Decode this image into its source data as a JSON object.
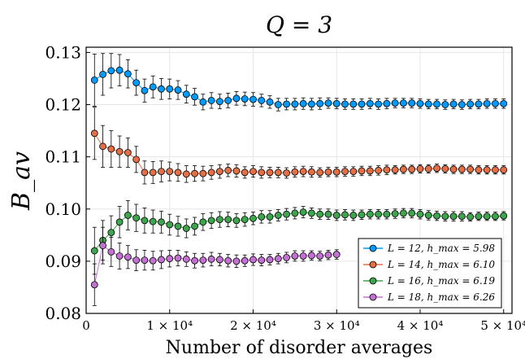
{
  "chart_data": {
    "type": "scatter",
    "title": "Q = 3",
    "xlabel": "Number of disorder averages",
    "ylabel": "B_av",
    "xlim": [
      0,
      51000
    ],
    "ylim": [
      0.08,
      0.131
    ],
    "xticks": [
      0,
      10000,
      20000,
      30000,
      40000,
      50000
    ],
    "xtick_labels": [
      "0",
      "1 × 10⁴",
      "2 × 10⁴",
      "3 × 10⁴",
      "4 × 10⁴",
      "5 × 10⁴"
    ],
    "yticks": [
      0.08,
      0.09,
      0.1,
      0.11,
      0.12,
      0.13
    ],
    "ytick_labels": [
      "0.08",
      "0.09",
      "0.10",
      "0.11",
      "0.12",
      "0.13"
    ],
    "grid": true,
    "legend_position": "bottom-right",
    "series": [
      {
        "name": "L = 12, h_max = 5.98",
        "color": "#009AFA",
        "points": [
          [
            1000,
            0.1247,
            0.005
          ],
          [
            2000,
            0.1258,
            0.004
          ],
          [
            3000,
            0.1265,
            0.0033
          ],
          [
            4000,
            0.1266,
            0.003
          ],
          [
            5000,
            0.1259,
            0.0027
          ],
          [
            6000,
            0.1242,
            0.0024
          ],
          [
            7000,
            0.1227,
            0.0022
          ],
          [
            8000,
            0.1234,
            0.0021
          ],
          [
            9000,
            0.123,
            0.002
          ],
          [
            10000,
            0.123,
            0.0019
          ],
          [
            11000,
            0.1228,
            0.0018
          ],
          [
            12000,
            0.122,
            0.0017
          ],
          [
            13000,
            0.1215,
            0.0016
          ],
          [
            14000,
            0.1205,
            0.0015
          ],
          [
            15000,
            0.1208,
            0.0015
          ],
          [
            16000,
            0.1206,
            0.0014
          ],
          [
            17000,
            0.1208,
            0.0014
          ],
          [
            18000,
            0.1212,
            0.0013
          ],
          [
            19000,
            0.1211,
            0.0013
          ],
          [
            20000,
            0.121,
            0.0013
          ],
          [
            21000,
            0.1208,
            0.0012
          ],
          [
            22000,
            0.1205,
            0.0012
          ],
          [
            23000,
            0.12,
            0.0012
          ],
          [
            24000,
            0.1201,
            0.0011
          ],
          [
            25000,
            0.1201,
            0.0011
          ],
          [
            26000,
            0.1202,
            0.0011
          ],
          [
            27000,
            0.1201,
            0.0011
          ],
          [
            28000,
            0.1202,
            0.0011
          ],
          [
            29000,
            0.1203,
            0.001
          ],
          [
            30000,
            0.1202,
            0.001
          ],
          [
            31000,
            0.1201,
            0.001
          ],
          [
            32000,
            0.1201,
            0.001
          ],
          [
            33000,
            0.1201,
            0.001
          ],
          [
            34000,
            0.1202,
            0.001
          ],
          [
            35000,
            0.1201,
            0.001
          ],
          [
            36000,
            0.1202,
            0.001
          ],
          [
            37000,
            0.1203,
            0.0009
          ],
          [
            38000,
            0.1203,
            0.0009
          ],
          [
            39000,
            0.1203,
            0.0009
          ],
          [
            40000,
            0.1202,
            0.0009
          ],
          [
            41000,
            0.1201,
            0.0009
          ],
          [
            42000,
            0.1201,
            0.0009
          ],
          [
            43000,
            0.12,
            0.0009
          ],
          [
            44000,
            0.1201,
            0.0009
          ],
          [
            45000,
            0.12,
            0.0009
          ],
          [
            46000,
            0.1201,
            0.0009
          ],
          [
            47000,
            0.1201,
            0.0009
          ],
          [
            48000,
            0.1202,
            0.0009
          ],
          [
            49000,
            0.1202,
            0.0009
          ],
          [
            50000,
            0.1202,
            0.0009
          ]
        ]
      },
      {
        "name": "L = 14, h_max = 6.10",
        "color": "#E26F46",
        "points": [
          [
            1000,
            0.1145,
            0.005
          ],
          [
            2000,
            0.112,
            0.004
          ],
          [
            3000,
            0.1115,
            0.0035
          ],
          [
            4000,
            0.111,
            0.003
          ],
          [
            5000,
            0.1108,
            0.0028
          ],
          [
            6000,
            0.1095,
            0.0025
          ],
          [
            7000,
            0.107,
            0.0022
          ],
          [
            8000,
            0.107,
            0.0021
          ],
          [
            9000,
            0.1072,
            0.002
          ],
          [
            10000,
            0.1072,
            0.0018
          ],
          [
            11000,
            0.107,
            0.0017
          ],
          [
            12000,
            0.1067,
            0.0016
          ],
          [
            13000,
            0.1068,
            0.0015
          ],
          [
            14000,
            0.1068,
            0.0014
          ],
          [
            15000,
            0.107,
            0.0013
          ],
          [
            16000,
            0.1072,
            0.0013
          ],
          [
            17000,
            0.1074,
            0.0012
          ],
          [
            18000,
            0.1073,
            0.0012
          ],
          [
            19000,
            0.107,
            0.0011
          ],
          [
            20000,
            0.1072,
            0.0011
          ],
          [
            21000,
            0.107,
            0.0011
          ],
          [
            22000,
            0.107,
            0.001
          ],
          [
            23000,
            0.107,
            0.001
          ],
          [
            24000,
            0.1069,
            0.001
          ],
          [
            25000,
            0.1071,
            0.001
          ],
          [
            26000,
            0.1072,
            0.001
          ],
          [
            27000,
            0.1071,
            0.001
          ],
          [
            28000,
            0.107,
            0.0009
          ],
          [
            29000,
            0.1071,
            0.0009
          ],
          [
            30000,
            0.1071,
            0.0009
          ],
          [
            31000,
            0.1072,
            0.0009
          ],
          [
            32000,
            0.1072,
            0.0009
          ],
          [
            33000,
            0.1073,
            0.0009
          ],
          [
            34000,
            0.1073,
            0.0009
          ],
          [
            35000,
            0.1074,
            0.0009
          ],
          [
            36000,
            0.1075,
            0.0009
          ],
          [
            37000,
            0.1075,
            0.0008
          ],
          [
            38000,
            0.1076,
            0.0008
          ],
          [
            39000,
            0.1076,
            0.0008
          ],
          [
            40000,
            0.1077,
            0.0008
          ],
          [
            41000,
            0.1077,
            0.0008
          ],
          [
            42000,
            0.1078,
            0.0008
          ],
          [
            43000,
            0.1077,
            0.0008
          ],
          [
            44000,
            0.1076,
            0.0008
          ],
          [
            45000,
            0.1076,
            0.0008
          ],
          [
            46000,
            0.1076,
            0.0008
          ],
          [
            47000,
            0.1075,
            0.0008
          ],
          [
            48000,
            0.1075,
            0.0008
          ],
          [
            49000,
            0.1075,
            0.0008
          ],
          [
            50000,
            0.1075,
            0.0008
          ]
        ]
      },
      {
        "name": "L = 16, h_max = 6.19",
        "color": "#3EA44E",
        "points": [
          [
            1000,
            0.092,
            0.0045
          ],
          [
            2000,
            0.094,
            0.0038
          ],
          [
            3000,
            0.0955,
            0.0032
          ],
          [
            4000,
            0.0975,
            0.003
          ],
          [
            5000,
            0.0988,
            0.0028
          ],
          [
            6000,
            0.0983,
            0.0026
          ],
          [
            7000,
            0.0978,
            0.0024
          ],
          [
            8000,
            0.0976,
            0.0022
          ],
          [
            9000,
            0.0975,
            0.0021
          ],
          [
            10000,
            0.097,
            0.002
          ],
          [
            11000,
            0.0967,
            0.0019
          ],
          [
            12000,
            0.0963,
            0.0018
          ],
          [
            13000,
            0.0967,
            0.0017
          ],
          [
            14000,
            0.0975,
            0.0016
          ],
          [
            15000,
            0.0978,
            0.0015
          ],
          [
            16000,
            0.098,
            0.0015
          ],
          [
            17000,
            0.098,
            0.0014
          ],
          [
            18000,
            0.0978,
            0.0013
          ],
          [
            19000,
            0.098,
            0.0013
          ],
          [
            20000,
            0.0982,
            0.0012
          ],
          [
            21000,
            0.0985,
            0.0012
          ],
          [
            22000,
            0.0985,
            0.0012
          ],
          [
            23000,
            0.0988,
            0.0011
          ],
          [
            24000,
            0.099,
            0.0011
          ],
          [
            25000,
            0.0992,
            0.0011
          ],
          [
            26000,
            0.0994,
            0.0011
          ],
          [
            27000,
            0.0992,
            0.001
          ],
          [
            28000,
            0.099,
            0.001
          ],
          [
            29000,
            0.099,
            0.001
          ],
          [
            30000,
            0.0988,
            0.001
          ],
          [
            31000,
            0.0989,
            0.001
          ],
          [
            32000,
            0.0988,
            0.001
          ],
          [
            33000,
            0.0989,
            0.0009
          ],
          [
            34000,
            0.099,
            0.0009
          ],
          [
            35000,
            0.099,
            0.0009
          ],
          [
            36000,
            0.099,
            0.0009
          ],
          [
            37000,
            0.0991,
            0.0009
          ],
          [
            38000,
            0.0992,
            0.0009
          ],
          [
            39000,
            0.0992,
            0.0009
          ],
          [
            40000,
            0.099,
            0.0009
          ],
          [
            41000,
            0.0988,
            0.0009
          ],
          [
            42000,
            0.0987,
            0.0009
          ],
          [
            43000,
            0.0986,
            0.0009
          ],
          [
            44000,
            0.0986,
            0.0009
          ],
          [
            45000,
            0.0986,
            0.0009
          ],
          [
            46000,
            0.0985,
            0.0008
          ],
          [
            47000,
            0.0986,
            0.0008
          ],
          [
            48000,
            0.0986,
            0.0008
          ],
          [
            49000,
            0.0986,
            0.0008
          ],
          [
            50000,
            0.0987,
            0.0008
          ]
        ]
      },
      {
        "name": "L = 18, h_max = 6.26",
        "color": "#C271D2",
        "points": [
          [
            1000,
            0.0855,
            0.004
          ],
          [
            2000,
            0.093,
            0.0035
          ],
          [
            3000,
            0.0918,
            0.0028
          ],
          [
            4000,
            0.091,
            0.0025
          ],
          [
            5000,
            0.0908,
            0.0022
          ],
          [
            6000,
            0.0902,
            0.002
          ],
          [
            7000,
            0.0902,
            0.0019
          ],
          [
            8000,
            0.0901,
            0.0018
          ],
          [
            9000,
            0.0903,
            0.0017
          ],
          [
            10000,
            0.0905,
            0.0016
          ],
          [
            11000,
            0.0906,
            0.0015
          ],
          [
            12000,
            0.0904,
            0.0014
          ],
          [
            13000,
            0.0901,
            0.0014
          ],
          [
            14000,
            0.0902,
            0.0013
          ],
          [
            15000,
            0.0904,
            0.0013
          ],
          [
            16000,
            0.0903,
            0.0012
          ],
          [
            17000,
            0.0901,
            0.0012
          ],
          [
            18000,
            0.09,
            0.0012
          ],
          [
            19000,
            0.0901,
            0.0011
          ],
          [
            20000,
            0.0903,
            0.0011
          ],
          [
            21000,
            0.0902,
            0.0011
          ],
          [
            22000,
            0.0903,
            0.001
          ],
          [
            23000,
            0.0905,
            0.001
          ],
          [
            24000,
            0.0907,
            0.001
          ],
          [
            25000,
            0.091,
            0.001
          ],
          [
            26000,
            0.091,
            0.001
          ],
          [
            27000,
            0.0911,
            0.0009
          ],
          [
            28000,
            0.091,
            0.0009
          ],
          [
            29000,
            0.0912,
            0.0009
          ],
          [
            30000,
            0.0913,
            0.0009
          ]
        ]
      }
    ]
  }
}
